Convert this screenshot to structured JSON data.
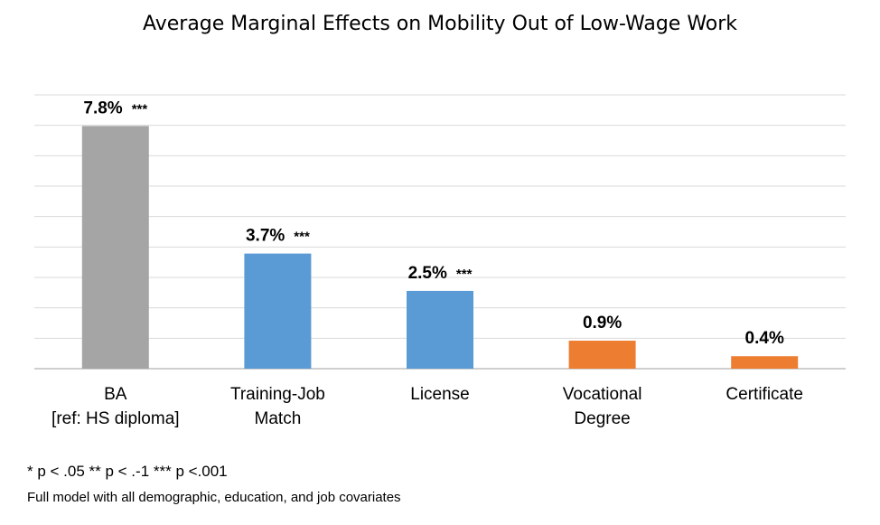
{
  "chart_data": {
    "type": "bar",
    "title": "Average Marginal Effects on Mobility Out of Low-Wage Work",
    "categories": [
      [
        "BA",
        "[ref: HS diploma]"
      ],
      [
        "Training-Job",
        "Match"
      ],
      [
        "License"
      ],
      [
        "Vocational",
        "Degree"
      ],
      [
        "Certificate"
      ]
    ],
    "values": [
      7.8,
      3.7,
      2.5,
      0.9,
      0.4
    ],
    "value_labels": [
      "7.8%",
      "3.7%",
      "2.5%",
      "0.9%",
      "0.4%"
    ],
    "significance": [
      "***",
      "***",
      "***",
      "",
      ""
    ],
    "bar_colors": [
      "#a5a5a5",
      "#5b9bd5",
      "#5b9bd5",
      "#ed7d31",
      "#ed7d31"
    ],
    "ylim": [
      0,
      8.8
    ],
    "gridlines": true,
    "y_tick_labels_shown": false
  },
  "footnotes": {
    "significance": "* p < .05   ** p < .-1  *** p <.001",
    "model": "Full model with all demographic, education, and job covariates"
  }
}
